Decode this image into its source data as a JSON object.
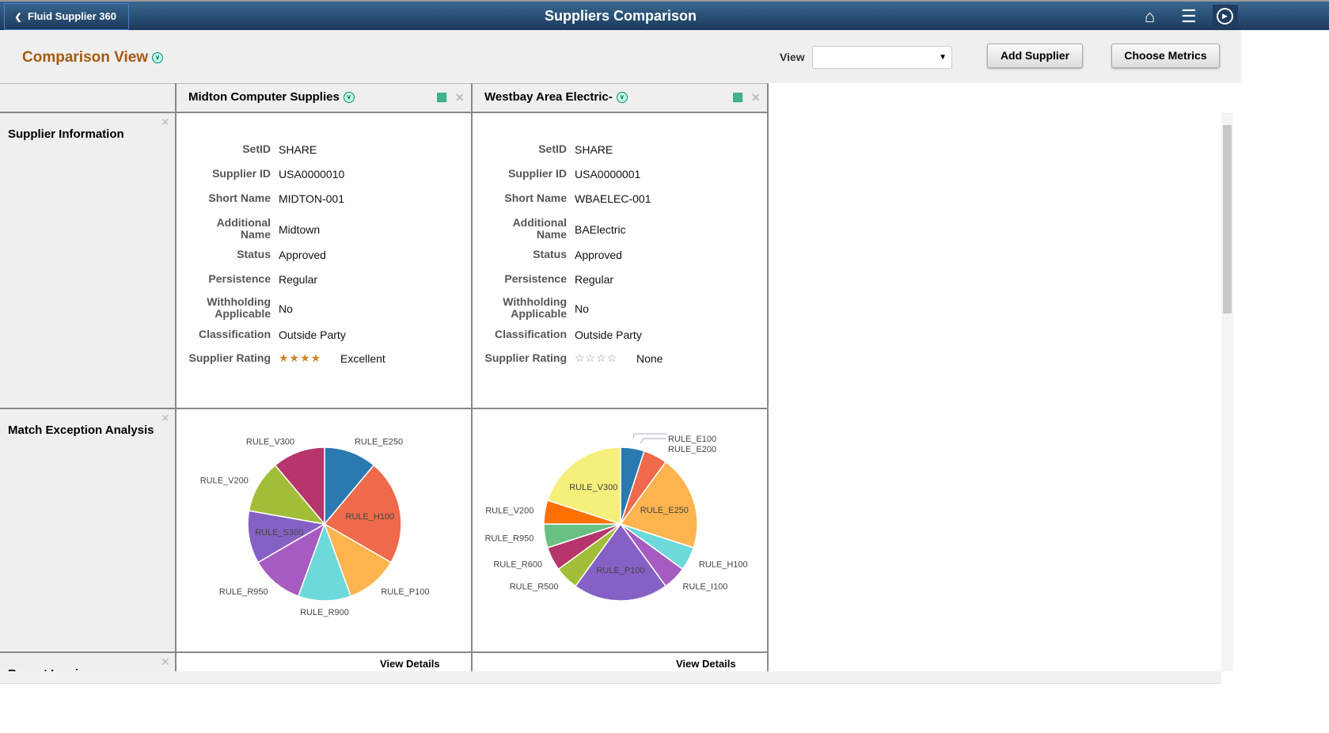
{
  "header": {
    "back_label": "Fluid Supplier 360",
    "title": "Suppliers Comparison",
    "icons": [
      "home-icon",
      "menu-icon",
      "navbar-compass-icon"
    ]
  },
  "toolbar": {
    "page_title": "Comparison View",
    "view_label": "View",
    "view_value": "",
    "add_supplier": "Add Supplier",
    "choose_metrics": "Choose Metrics"
  },
  "rows": {
    "supplier_info": "Supplier Information",
    "match_exception": "Match Exception Analysis",
    "recent_invoices": "Recent Invoices"
  },
  "field_labels": {
    "setid": "SetID",
    "supplier_id": "Supplier ID",
    "short_name": "Short Name",
    "additional_name": "Additional Name",
    "status": "Status",
    "persistence": "Persistence",
    "withholding": "Withholding Applicable",
    "classification": "Classification",
    "rating": "Supplier Rating"
  },
  "suppliers": [
    {
      "name": "Midton Computer Supplies",
      "setid": "SHARE",
      "supplier_id": "USA0000010",
      "short_name": "MIDTON-001",
      "additional_name": "Midtown",
      "status": "Approved",
      "persistence": "Regular",
      "withholding": "No",
      "classification": "Outside Party",
      "rating_stars": 4,
      "rating_text": "Excellent",
      "view_details": "View Details"
    },
    {
      "name": "Westbay Area Electric-",
      "setid": "SHARE",
      "supplier_id": "USA0000001",
      "short_name": "WBAELEC-001",
      "additional_name": "BAElectric",
      "status": "Approved",
      "persistence": "Regular",
      "withholding": "No",
      "classification": "Outside Party",
      "rating_stars": 0,
      "rating_text": "None",
      "view_details": "View Details"
    }
  ],
  "chart_data": [
    {
      "type": "pie",
      "categories": [
        "RULE_E250",
        "RULE_H100",
        "RULE_P100",
        "RULE_R900",
        "RULE_R950",
        "RULE_S300",
        "RULE_V200",
        "RULE_V300"
      ],
      "values": [
        1,
        2,
        1,
        1,
        1,
        1,
        1,
        1
      ],
      "colors": [
        "#2a7ab0",
        "#ee6a4a",
        "#fdb44e",
        "#6dd9da",
        "#a55bbf",
        "#8561c5",
        "#a2be38",
        "#b6356a"
      ]
    },
    {
      "type": "pie",
      "categories": [
        "RULE_E100",
        "RULE_E200",
        "RULE_E250",
        "RULE_H100",
        "RULE_I100",
        "RULE_P100",
        "RULE_R500",
        "RULE_R600",
        "RULE_R950",
        "RULE_V200",
        "RULE_V300"
      ],
      "values": [
        1,
        1,
        4,
        1,
        1,
        4,
        1,
        1,
        1,
        1,
        4
      ],
      "colors": [
        "#2a7ab0",
        "#ee6a4a",
        "#fdb44e",
        "#6dd9da",
        "#a55bbf",
        "#8561c5",
        "#a2be38",
        "#b6356a",
        "#68c182",
        "#ff7000",
        "#f6ef7b"
      ]
    }
  ]
}
